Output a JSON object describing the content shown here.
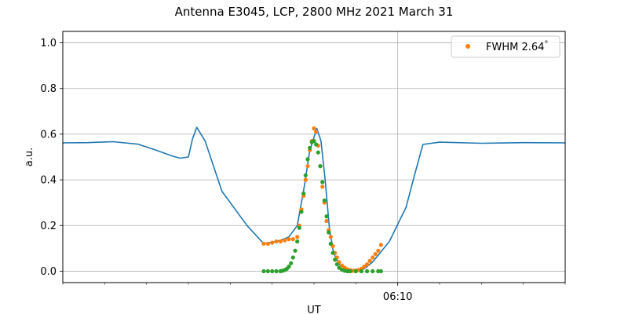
{
  "chart_data": {
    "type": "line",
    "title": "Antenna E3045, LCP, 2800 MHz 2021 March 31",
    "xlabel": "UT",
    "ylabel": "a.u.",
    "ylim": [
      -0.05,
      1.05
    ],
    "yticks": [
      "0.0",
      "0.2",
      "0.4",
      "0.6",
      "0.8",
      "1.0"
    ],
    "xlim": [
      "06:02:00",
      "06:14:00"
    ],
    "xtick_labels": [
      {
        "time": "06:10:00",
        "label": "06:10"
      }
    ],
    "grid": true,
    "legend": {
      "placement": "top-right",
      "entries": [
        "FWHM 2.64$^\\circ$"
      ],
      "display": [
        "FWHM 2.64",
        "°"
      ]
    },
    "colors": {
      "line": "#1f77b4",
      "measured": "#ff7f0e",
      "fit": "#2ca02c",
      "grid": "#b0b0b0"
    },
    "series": [
      {
        "style": "line",
        "x": [
          "06:02:00",
          "06:02:36",
          "06:03:12",
          "06:03:48",
          "06:04:12",
          "06:04:36",
          "06:04:48",
          "06:05:00",
          "06:05:06",
          "06:05:12",
          "06:05:24",
          "06:05:48",
          "06:06:24",
          "06:06:48",
          "06:07:12",
          "06:07:24",
          "06:07:36",
          "06:07:46",
          "06:07:54",
          "06:08:04",
          "06:08:10",
          "06:08:16",
          "06:08:22",
          "06:08:28",
          "06:08:36",
          "06:08:46",
          "06:09:00",
          "06:09:12",
          "06:09:24",
          "06:09:48",
          "06:10:12",
          "06:10:24",
          "06:10:36",
          "06:11:00",
          "06:12:00",
          "06:13:00",
          "06:14:00"
        ],
        "y": [
          0.562,
          0.563,
          0.567,
          0.556,
          0.532,
          0.505,
          0.495,
          0.5,
          0.58,
          0.63,
          0.57,
          0.35,
          0.2,
          0.12,
          0.135,
          0.15,
          0.2,
          0.37,
          0.53,
          0.625,
          0.57,
          0.4,
          0.19,
          0.08,
          0.03,
          0.01,
          0.005,
          0.01,
          0.04,
          0.13,
          0.28,
          0.42,
          0.555,
          0.565,
          0.56,
          0.563,
          0.562
        ]
      },
      {
        "style": "scatter",
        "x": [
          "06:06:48",
          "06:06:54",
          "06:07:00",
          "06:07:06",
          "06:07:12",
          "06:07:18",
          "06:07:24",
          "06:07:30",
          "06:07:36",
          "06:07:39",
          "06:07:42",
          "06:07:45",
          "06:07:48",
          "06:07:51",
          "06:07:54",
          "06:07:57",
          "06:08:00",
          "06:08:03",
          "06:08:06",
          "06:08:09",
          "06:08:12",
          "06:08:15",
          "06:08:18",
          "06:08:21",
          "06:08:24",
          "06:08:27",
          "06:08:30",
          "06:08:33",
          "06:08:36",
          "06:08:40",
          "06:08:44",
          "06:08:48",
          "06:08:52",
          "06:08:56",
          "06:09:00",
          "06:09:04",
          "06:09:08",
          "06:09:12",
          "06:09:16",
          "06:09:20",
          "06:09:24",
          "06:09:28",
          "06:09:32",
          "06:09:36"
        ],
        "y": [
          0.12,
          0.12,
          0.125,
          0.13,
          0.13,
          0.135,
          0.14,
          0.14,
          0.15,
          0.2,
          0.27,
          0.33,
          0.4,
          0.46,
          0.53,
          0.57,
          0.625,
          0.61,
          0.55,
          0.46,
          0.37,
          0.3,
          0.22,
          0.18,
          0.15,
          0.11,
          0.08,
          0.06,
          0.04,
          0.025,
          0.015,
          0.008,
          0.004,
          0.002,
          0.003,
          0.005,
          0.01,
          0.02,
          0.03,
          0.045,
          0.06,
          0.075,
          0.09,
          0.115
        ]
      },
      {
        "style": "scatter",
        "x": [
          "06:06:48",
          "06:06:54",
          "06:07:00",
          "06:07:06",
          "06:07:12",
          "06:07:15",
          "06:07:18",
          "06:07:21",
          "06:07:24",
          "06:07:27",
          "06:07:30",
          "06:07:33",
          "06:07:36",
          "06:07:39",
          "06:07:42",
          "06:07:45",
          "06:07:48",
          "06:07:51",
          "06:07:54",
          "06:07:57",
          "06:08:00",
          "06:08:03",
          "06:08:06",
          "06:08:09",
          "06:08:12",
          "06:08:15",
          "06:08:18",
          "06:08:21",
          "06:08:24",
          "06:08:27",
          "06:08:30",
          "06:08:33",
          "06:08:36",
          "06:08:40",
          "06:08:44",
          "06:08:48",
          "06:08:52",
          "06:09:00",
          "06:09:08",
          "06:09:16",
          "06:09:24",
          "06:09:32",
          "06:09:36"
        ],
        "y": [
          0.0,
          0.0,
          0.0,
          0.0,
          0.0,
          0.002,
          0.005,
          0.01,
          0.02,
          0.035,
          0.06,
          0.09,
          0.13,
          0.19,
          0.26,
          0.34,
          0.42,
          0.49,
          0.54,
          0.565,
          0.57,
          0.555,
          0.52,
          0.46,
          0.39,
          0.31,
          0.24,
          0.17,
          0.12,
          0.08,
          0.05,
          0.03,
          0.015,
          0.006,
          0.002,
          0.0,
          0.0,
          0.0,
          0.0,
          0.0,
          0.0,
          0.0,
          0.0
        ]
      }
    ]
  }
}
